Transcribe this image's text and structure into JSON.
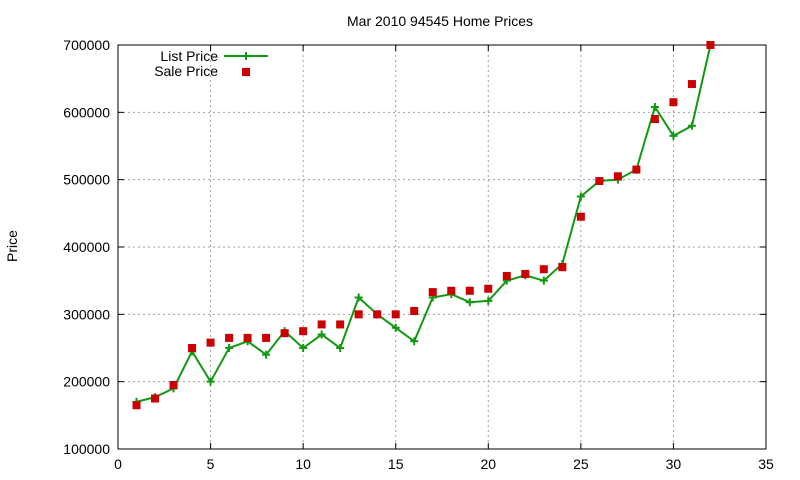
{
  "chart_data": {
    "type": "line",
    "title": "Mar 2010 94545 Home Prices",
    "xlabel": "",
    "ylabel": "Price",
    "xlim": [
      0,
      35
    ],
    "ylim": [
      100000,
      700000
    ],
    "x_ticks": [
      0,
      5,
      10,
      15,
      20,
      25,
      30,
      35
    ],
    "y_ticks": [
      100000,
      200000,
      300000,
      400000,
      500000,
      600000,
      700000
    ],
    "grid": true,
    "legend_position": "top-left",
    "series": [
      {
        "name": "List Price",
        "style": "line-with-plus-markers",
        "color": "#119911",
        "x": [
          1,
          2,
          3,
          4,
          5,
          6,
          7,
          8,
          9,
          10,
          11,
          12,
          13,
          14,
          15,
          16,
          17,
          18,
          19,
          20,
          21,
          22,
          23,
          24,
          25,
          26,
          27,
          28,
          29,
          30,
          31,
          32
        ],
        "values": [
          170000,
          177000,
          190000,
          245000,
          200000,
          250000,
          260000,
          240000,
          275000,
          250000,
          270000,
          250000,
          325000,
          300000,
          280000,
          260000,
          325000,
          330000,
          318000,
          320000,
          350000,
          358000,
          350000,
          375000,
          475000,
          498000,
          500000,
          515000,
          608000,
          565000,
          580000,
          700000
        ]
      },
      {
        "name": "Sale Price",
        "style": "square-markers",
        "color": "#cc0000",
        "x": [
          1,
          2,
          3,
          4,
          5,
          6,
          7,
          8,
          9,
          10,
          11,
          12,
          13,
          14,
          15,
          16,
          17,
          18,
          19,
          20,
          21,
          22,
          23,
          24,
          25,
          26,
          27,
          28,
          29,
          30,
          31,
          32
        ],
        "values": [
          165000,
          175000,
          195000,
          250000,
          258000,
          265000,
          265000,
          265000,
          272000,
          275000,
          285000,
          285000,
          300000,
          300000,
          300000,
          305000,
          333000,
          335000,
          335000,
          338000,
          357000,
          360000,
          367000,
          370000,
          445000,
          498000,
          505000,
          515000,
          590000,
          615000,
          642000,
          700000
        ]
      }
    ]
  }
}
